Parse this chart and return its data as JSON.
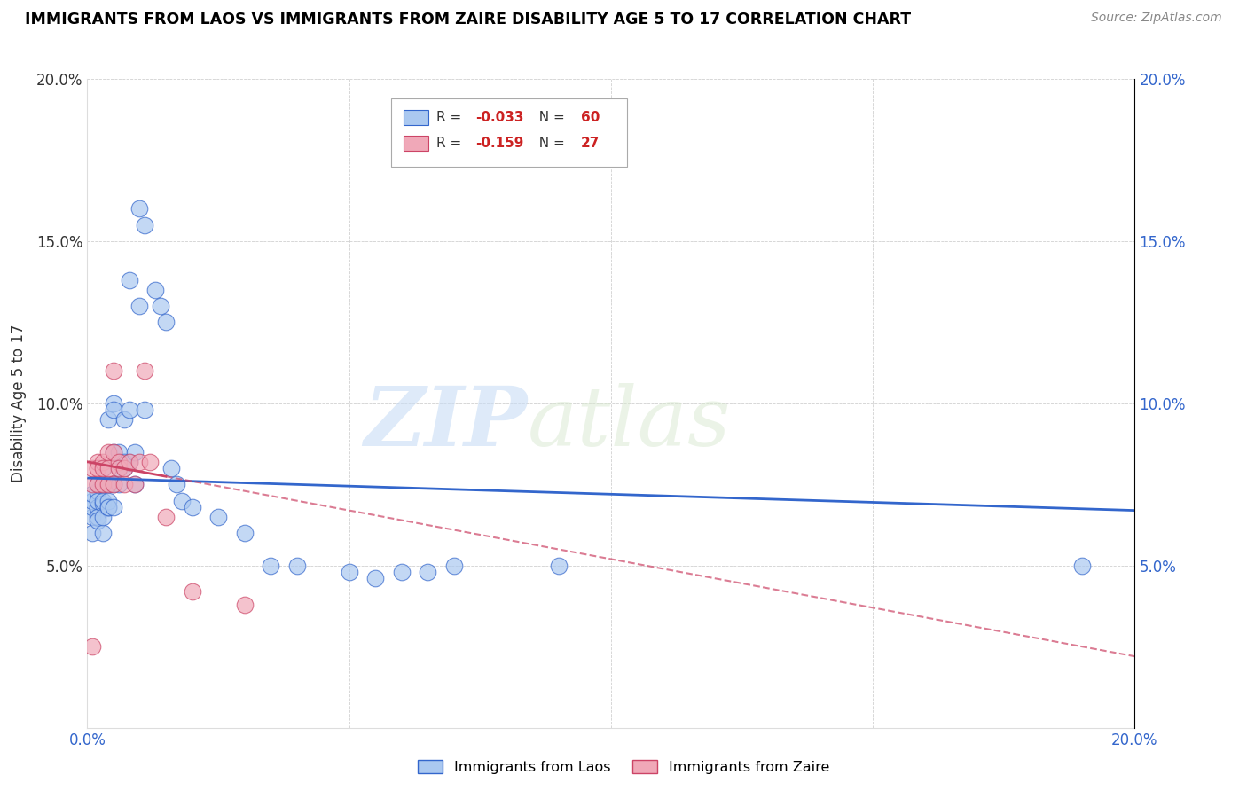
{
  "title": "IMMIGRANTS FROM LAOS VS IMMIGRANTS FROM ZAIRE DISABILITY AGE 5 TO 17 CORRELATION CHART",
  "source": "Source: ZipAtlas.com",
  "ylabel": "Disability Age 5 to 17",
  "xlim": [
    0.0,
    0.2
  ],
  "ylim": [
    0.0,
    0.2
  ],
  "color_laos": "#aac8f0",
  "color_zaire": "#f0a8b8",
  "color_line_laos": "#3366cc",
  "color_line_zaire": "#cc4466",
  "watermark_zip": "ZIP",
  "watermark_atlas": "atlas",
  "laos_x": [
    0.001,
    0.001,
    0.001,
    0.001,
    0.001,
    0.002,
    0.002,
    0.002,
    0.002,
    0.002,
    0.002,
    0.003,
    0.003,
    0.003,
    0.003,
    0.003,
    0.003,
    0.004,
    0.004,
    0.004,
    0.004,
    0.004,
    0.005,
    0.005,
    0.005,
    0.005,
    0.005,
    0.006,
    0.006,
    0.006,
    0.007,
    0.007,
    0.007,
    0.008,
    0.008,
    0.008,
    0.009,
    0.009,
    0.01,
    0.01,
    0.011,
    0.011,
    0.013,
    0.014,
    0.015,
    0.016,
    0.017,
    0.018,
    0.02,
    0.025,
    0.03,
    0.035,
    0.04,
    0.05,
    0.055,
    0.06,
    0.065,
    0.07,
    0.09,
    0.19
  ],
  "laos_y": [
    0.065,
    0.068,
    0.07,
    0.072,
    0.06,
    0.073,
    0.068,
    0.075,
    0.065,
    0.07,
    0.064,
    0.069,
    0.075,
    0.08,
    0.06,
    0.07,
    0.065,
    0.068,
    0.075,
    0.095,
    0.07,
    0.068,
    0.085,
    0.075,
    0.068,
    0.1,
    0.098,
    0.085,
    0.08,
    0.075,
    0.095,
    0.082,
    0.08,
    0.138,
    0.098,
    0.082,
    0.085,
    0.075,
    0.13,
    0.16,
    0.155,
    0.098,
    0.135,
    0.13,
    0.125,
    0.08,
    0.075,
    0.07,
    0.068,
    0.065,
    0.06,
    0.05,
    0.05,
    0.048,
    0.046,
    0.048,
    0.048,
    0.05,
    0.05,
    0.05
  ],
  "zaire_x": [
    0.001,
    0.001,
    0.001,
    0.002,
    0.002,
    0.002,
    0.003,
    0.003,
    0.003,
    0.004,
    0.004,
    0.004,
    0.005,
    0.005,
    0.005,
    0.006,
    0.006,
    0.007,
    0.007,
    0.008,
    0.009,
    0.01,
    0.011,
    0.012,
    0.015,
    0.02,
    0.03
  ],
  "zaire_y": [
    0.025,
    0.075,
    0.08,
    0.082,
    0.075,
    0.08,
    0.082,
    0.075,
    0.08,
    0.085,
    0.075,
    0.08,
    0.085,
    0.075,
    0.11,
    0.082,
    0.08,
    0.075,
    0.08,
    0.082,
    0.075,
    0.082,
    0.11,
    0.082,
    0.065,
    0.042,
    0.038
  ]
}
